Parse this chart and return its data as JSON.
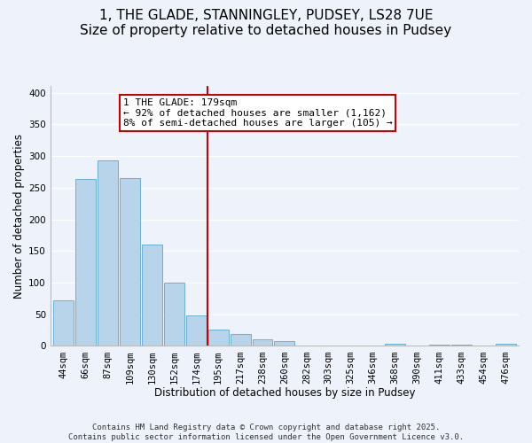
{
  "title": "1, THE GLADE, STANNINGLEY, PUDSEY, LS28 7UE",
  "subtitle": "Size of property relative to detached houses in Pudsey",
  "xlabel": "Distribution of detached houses by size in Pudsey",
  "ylabel": "Number of detached properties",
  "categories": [
    "44sqm",
    "66sqm",
    "87sqm",
    "109sqm",
    "130sqm",
    "152sqm",
    "174sqm",
    "195sqm",
    "217sqm",
    "238sqm",
    "260sqm",
    "282sqm",
    "303sqm",
    "325sqm",
    "346sqm",
    "368sqm",
    "390sqm",
    "411sqm",
    "433sqm",
    "454sqm",
    "476sqm"
  ],
  "values": [
    72,
    263,
    293,
    265,
    160,
    100,
    48,
    26,
    19,
    10,
    8,
    0,
    0,
    0,
    0,
    3,
    0,
    2,
    2,
    0,
    3
  ],
  "bar_color": "#b8d4ea",
  "bar_edge_color": "#6aaed6",
  "marker_line_color": "#cc0000",
  "annotation_title": "1 THE GLADE: 179sqm",
  "annotation_line1": "← 92% of detached houses are smaller (1,162)",
  "annotation_line2": "8% of semi-detached houses are larger (105) →",
  "ylim": [
    0,
    410
  ],
  "yticks": [
    0,
    50,
    100,
    150,
    200,
    250,
    300,
    350,
    400
  ],
  "footer_line1": "Contains HM Land Registry data © Crown copyright and database right 2025.",
  "footer_line2": "Contains public sector information licensed under the Open Government Licence v3.0.",
  "background_color": "#eef2fb",
  "box_edge_color": "#cc0000",
  "title_fontsize": 11,
  "axis_label_fontsize": 8.5,
  "tick_fontsize": 7.5,
  "annotation_fontsize": 8,
  "footer_fontsize": 6.5
}
